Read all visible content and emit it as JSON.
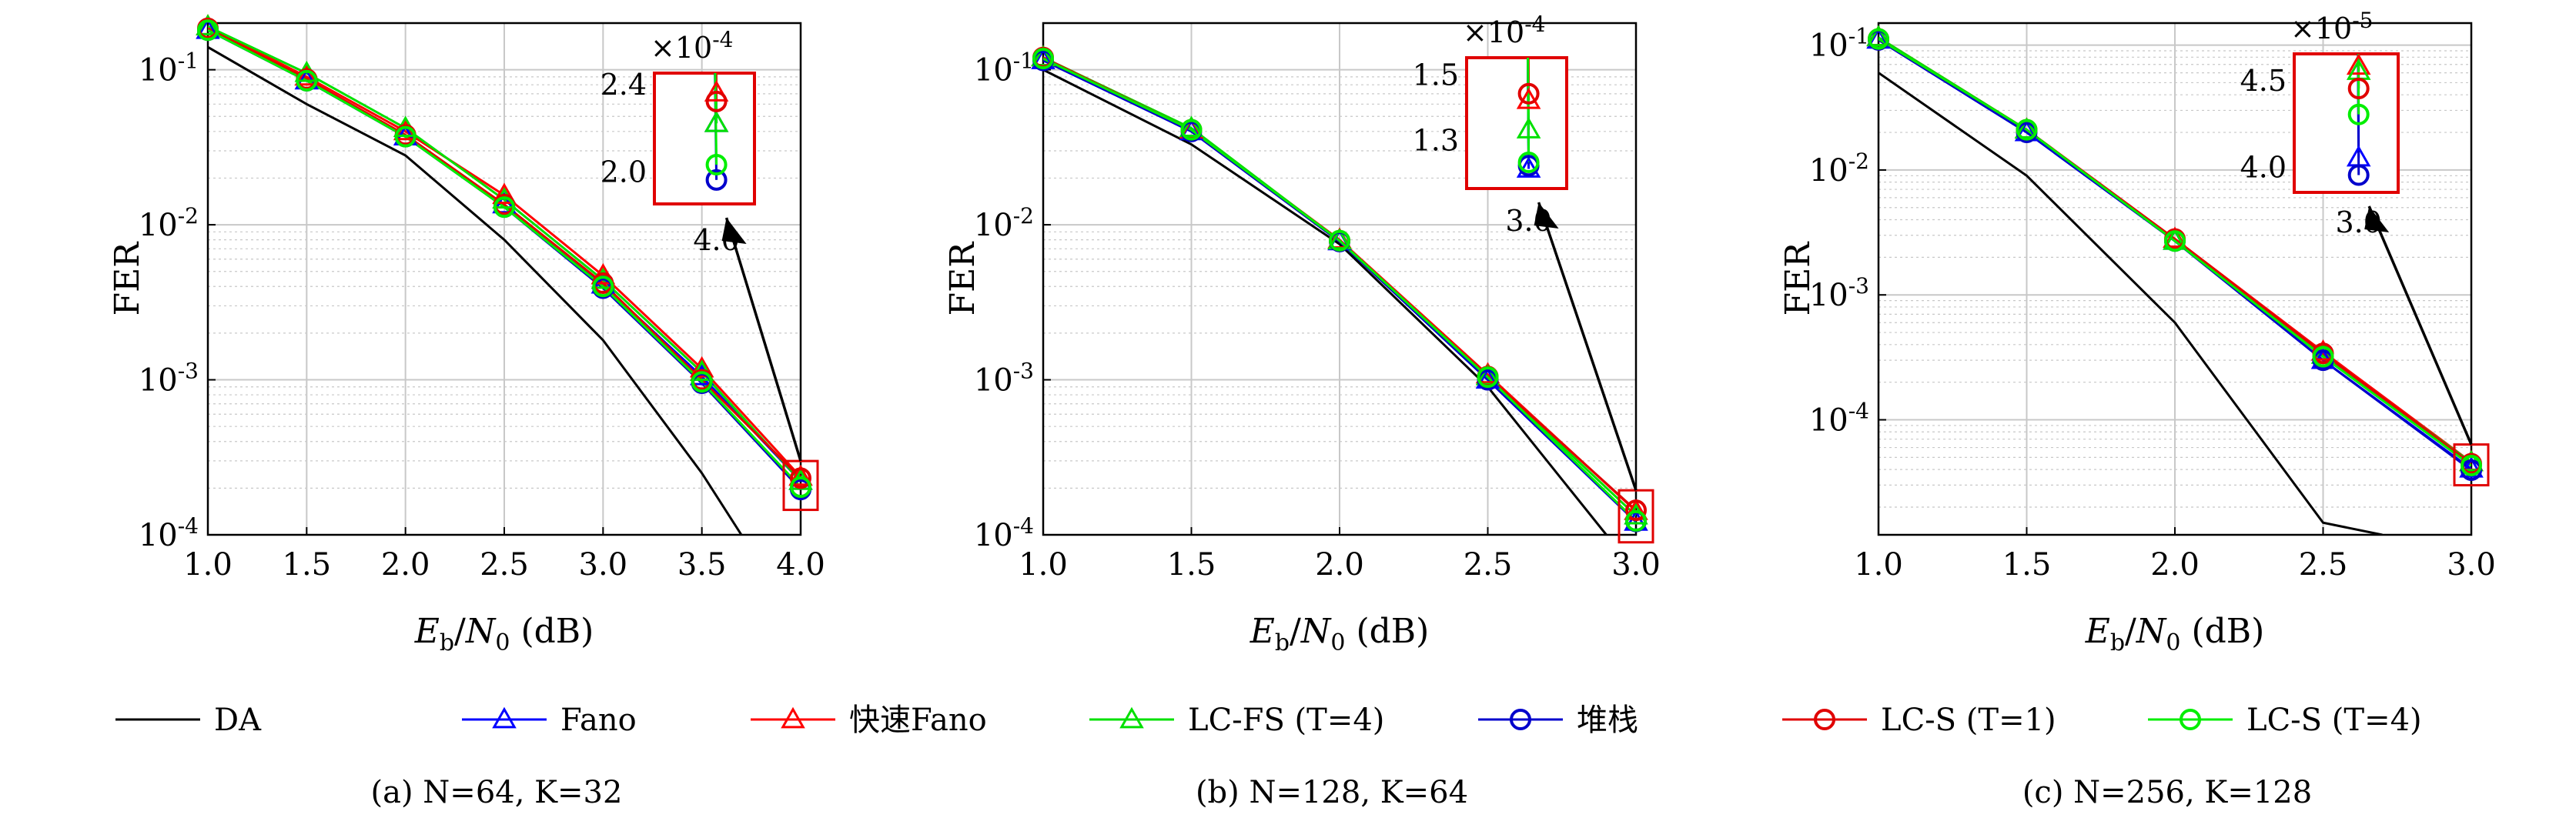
{
  "colors": {
    "DA": "#000000",
    "Fano": "#0000ff",
    "FastFano": "#ff0000",
    "LCFS": "#00e000",
    "Stack": "#0000cc",
    "LCS1": "#e00000",
    "LCS4": "#00ee00",
    "zoom_box": "#e00000",
    "grid": "#c8c8c8"
  },
  "legend": {
    "items": [
      {
        "key": "DA",
        "label": "DA",
        "marker": "none"
      },
      {
        "key": "Fano",
        "label": "Fano",
        "marker": "triangle"
      },
      {
        "key": "FastFano",
        "label": "快速Fano",
        "marker": "triangle"
      },
      {
        "key": "LCFS",
        "label": "LC-FS (T=4)",
        "marker": "triangle"
      },
      {
        "key": "Stack",
        "label": "堆栈",
        "marker": "circle"
      },
      {
        "key": "LCS1",
        "label": "LC-S (T=1)",
        "marker": "circle"
      },
      {
        "key": "LCS4",
        "label": "LC-S (T=4)",
        "marker": "circle"
      }
    ]
  },
  "chart_data": [
    {
      "type": "line",
      "caption": "(a) N=64, K=32",
      "xlabel": "Eb/N0 (dB)",
      "ylabel": "FER",
      "yscale": "log",
      "xlim": [
        1.0,
        4.0
      ],
      "ylim": [
        0.0001,
        0.2
      ],
      "xticks": [
        "1.0",
        "1.5",
        "2.0",
        "2.5",
        "3.0",
        "3.5",
        "4.0"
      ],
      "yticks": [
        "10^-1",
        "10^-2",
        "10^-3",
        "10^-4"
      ],
      "grid": true,
      "x": [
        1.0,
        1.5,
        2.0,
        2.5,
        3.0,
        3.5,
        4.0
      ],
      "series": [
        {
          "key": "DA",
          "name": "DA",
          "x": [
            1.0,
            1.5,
            2.0,
            2.5,
            3.0,
            3.5,
            3.7
          ],
          "values": [
            0.14,
            0.06,
            0.028,
            0.008,
            0.0018,
            0.00025,
            0.0001
          ]
        },
        {
          "key": "Fano",
          "name": "Fano",
          "values": [
            0.18,
            0.085,
            0.037,
            0.0135,
            0.0041,
            0.00105,
            0.000222
          ]
        },
        {
          "key": "FastFano",
          "name": "快速Fano",
          "values": [
            0.19,
            0.09,
            0.04,
            0.0155,
            0.0047,
            0.00118,
            0.000236
          ]
        },
        {
          "key": "LCFS",
          "name": "LC-FS (T=4)",
          "values": [
            0.19,
            0.095,
            0.042,
            0.0145,
            0.0044,
            0.00112,
            0.000222
          ]
        },
        {
          "key": "Stack",
          "name": "堆栈",
          "values": [
            0.18,
            0.085,
            0.037,
            0.013,
            0.0039,
            0.00095,
            0.000196
          ]
        },
        {
          "key": "LCS1",
          "name": "LC-S (T=1)",
          "values": [
            0.185,
            0.087,
            0.038,
            0.0135,
            0.0042,
            0.001,
            0.000232
          ]
        },
        {
          "key": "LCS4",
          "name": "LC-S (T=4)",
          "values": [
            0.18,
            0.085,
            0.037,
            0.013,
            0.004,
            0.00097,
            0.000203
          ]
        }
      ],
      "inset": {
        "multiplier_base": "×10",
        "multiplier_exp": "-4",
        "x_tick": "4.0",
        "yticks": [
          "2.4",
          "2.0"
        ],
        "ylim": [
          1.85,
          2.45
        ],
        "scale": 0.0001,
        "zoom_x": 4.0,
        "zoom_y": [
          0.00017,
          0.000255
        ]
      }
    },
    {
      "type": "line",
      "caption": "(b) N=128, K=64",
      "xlabel": "Eb/N0 (dB)",
      "ylabel": "FER",
      "yscale": "log",
      "xlim": [
        1.0,
        3.0
      ],
      "ylim": [
        0.0001,
        0.2
      ],
      "xticks": [
        "1.0",
        "1.5",
        "2.0",
        "2.5",
        "3.0"
      ],
      "yticks": [
        "10^-1",
        "10^-2",
        "10^-3",
        "10^-4"
      ],
      "grid": true,
      "x": [
        1.0,
        1.5,
        2.0,
        2.5,
        3.0
      ],
      "series": [
        {
          "key": "DA",
          "name": "DA",
          "x": [
            1.0,
            1.5,
            2.0,
            2.5,
            2.9
          ],
          "values": [
            0.1,
            0.033,
            0.0075,
            0.0009,
            0.0001
          ]
        },
        {
          "key": "Fano",
          "name": "Fano",
          "values": [
            0.115,
            0.04,
            0.0078,
            0.001,
            0.000121
          ]
        },
        {
          "key": "FastFano",
          "name": "快速Fano",
          "values": [
            0.12,
            0.041,
            0.008,
            0.00108,
            0.000142
          ]
        },
        {
          "key": "LCFS",
          "name": "LC-FS (T=4)",
          "values": [
            0.12,
            0.042,
            0.0079,
            0.00105,
            0.000133
          ]
        },
        {
          "key": "Stack",
          "name": "堆栈",
          "values": [
            0.115,
            0.04,
            0.0078,
            0.001,
            0.000122
          ]
        },
        {
          "key": "LCS1",
          "name": "LC-S (T=1)",
          "values": [
            0.12,
            0.041,
            0.0079,
            0.00105,
            0.000144
          ]
        },
        {
          "key": "LCS4",
          "name": "LC-S (T=4)",
          "values": [
            0.118,
            0.041,
            0.0079,
            0.00104,
            0.000123
          ]
        }
      ],
      "inset": {
        "multiplier_base": "×10",
        "multiplier_exp": "-4",
        "x_tick": "3.0",
        "yticks": [
          "1.5",
          "1.3"
        ],
        "ylim": [
          1.15,
          1.55
        ],
        "scale": 0.0001,
        "zoom_x": 3.0,
        "zoom_y": [
          0.000105,
          0.000165
        ]
      }
    },
    {
      "type": "line",
      "caption": "(c) N=256, K=128",
      "xlabel": "Eb/N0 (dB)",
      "ylabel": "FER",
      "yscale": "log",
      "xlim": [
        1.0,
        3.0
      ],
      "ylim": [
        1.2e-05,
        0.15
      ],
      "xticks": [
        "1.0",
        "1.5",
        "2.0",
        "2.5",
        "3.0"
      ],
      "yticks": [
        "10^-1",
        "10^-2",
        "10^-3",
        "10^-4"
      ],
      "grid": true,
      "x": [
        1.0,
        1.5,
        2.0,
        2.5,
        3.0
      ],
      "series": [
        {
          "key": "DA",
          "name": "DA",
          "x": [
            1.0,
            1.5,
            2.0,
            2.5,
            2.7
          ],
          "values": [
            0.06,
            0.009,
            0.0006,
            1.5e-05,
            1.2e-05
          ]
        },
        {
          "key": "Fano",
          "name": "Fano",
          "values": [
            0.11,
            0.02,
            0.0027,
            0.0003,
            4.05e-05
          ]
        },
        {
          "key": "FastFano",
          "name": "快速Fano",
          "values": [
            0.115,
            0.021,
            0.0028,
            0.00035,
            4.58e-05
          ]
        },
        {
          "key": "LCFS",
          "name": "LC-FS (T=4)",
          "values": [
            0.115,
            0.021,
            0.0027,
            0.00033,
            4.55e-05
          ]
        },
        {
          "key": "Stack",
          "name": "堆栈",
          "values": [
            0.11,
            0.02,
            0.0027,
            0.0003,
            3.95e-05
          ]
        },
        {
          "key": "LCS1",
          "name": "LC-S (T=1)",
          "values": [
            0.112,
            0.021,
            0.0028,
            0.00034,
            4.45e-05
          ]
        },
        {
          "key": "LCS4",
          "name": "LC-S (T=4)",
          "values": [
            0.112,
            0.021,
            0.0027,
            0.00032,
            4.3e-05
          ]
        }
      ],
      "inset": {
        "multiplier_base": "×10",
        "multiplier_exp": "-5",
        "x_tick": "3.0",
        "yticks": [
          "4.5",
          "4.0"
        ],
        "ylim": [
          3.85,
          4.65
        ],
        "scale": 1e-05,
        "zoom_x": 3.0,
        "zoom_y": [
          3.65e-05,
          5.2e-05
        ]
      }
    }
  ]
}
